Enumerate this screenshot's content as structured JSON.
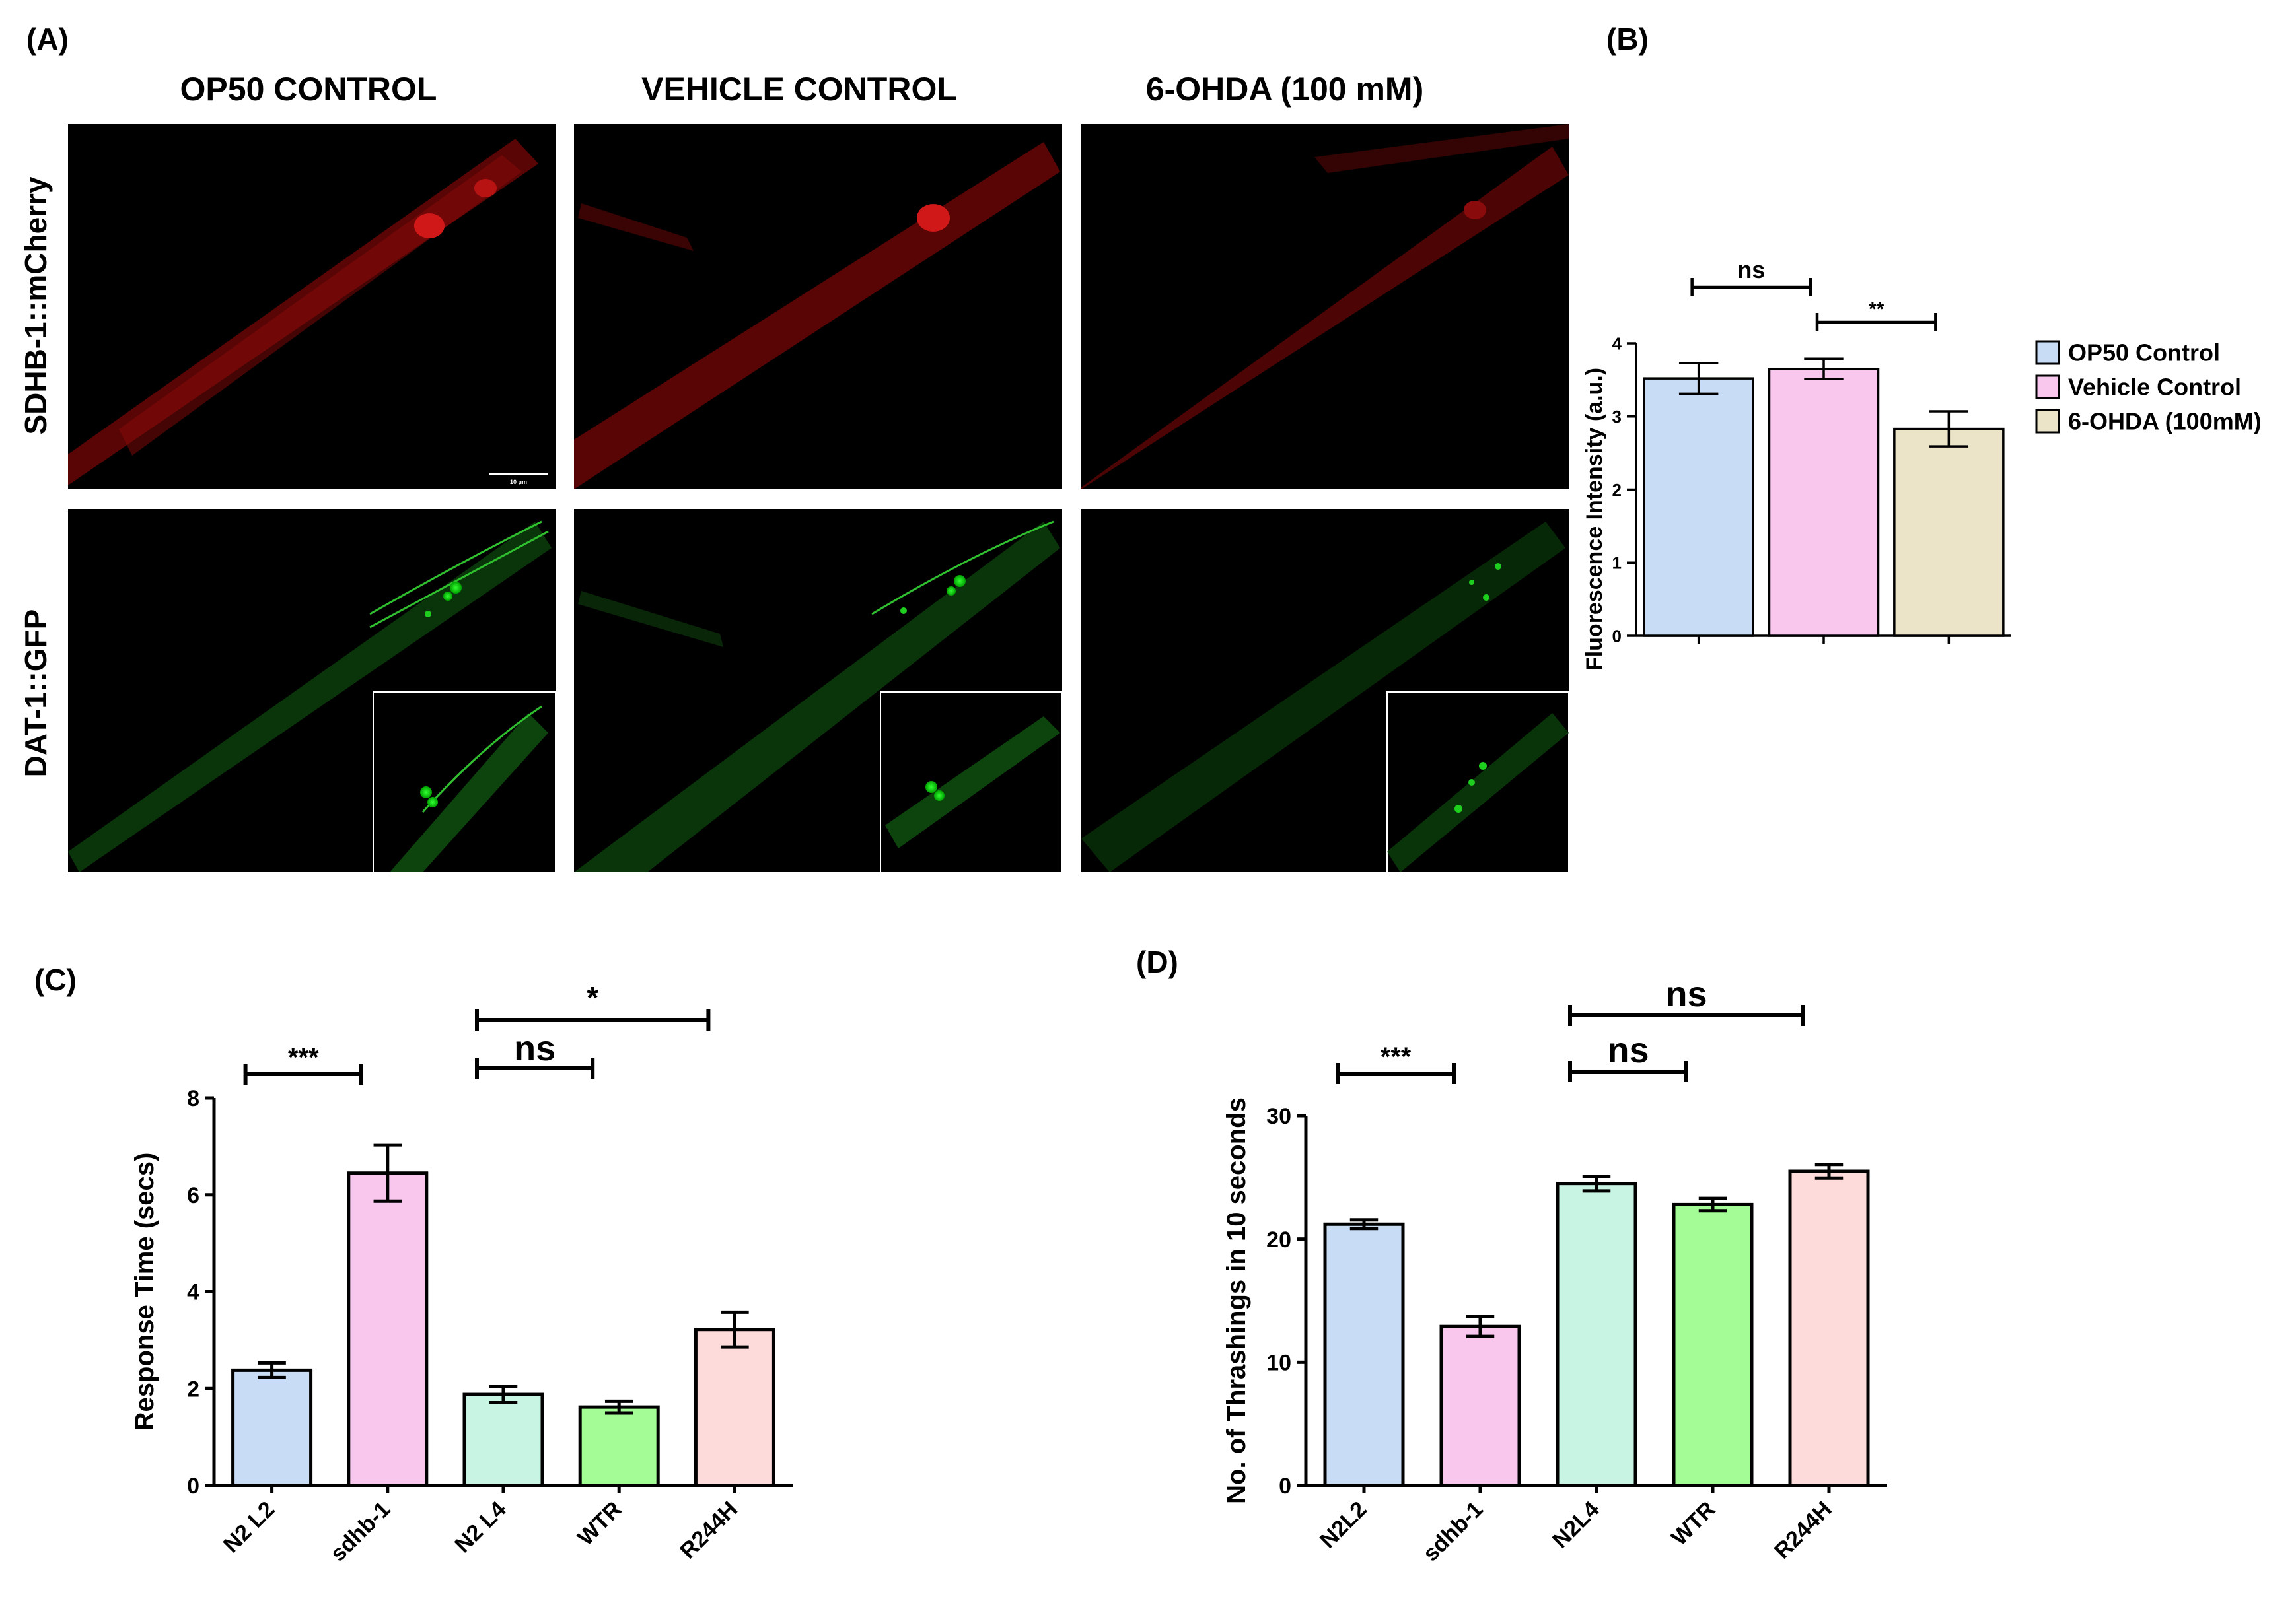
{
  "panel_a": {
    "label": "(A)",
    "column_headers": [
      "OP50 CONTROL",
      "VEHICLE CONTROL",
      "6-OHDA (100 mM)"
    ],
    "row_labels": [
      "SDHB-1::mCherry",
      "DAT-1::GFP"
    ],
    "scale_bar_label": "10 μm"
  },
  "chart_data": [
    {
      "panel": "(B)",
      "type": "bar",
      "categories": [
        "OP50 Control",
        "Vehicle Control",
        "6-OHDA (100mM)"
      ],
      "values": [
        3.52,
        3.65,
        2.83
      ],
      "errors": [
        0.21,
        0.14,
        0.24
      ],
      "colors": [
        "#c9dcf5",
        "#f9c7ee",
        "#ebe4c8"
      ],
      "title": "",
      "xlabel": "",
      "ylabel": "Fluorescence Intensity (a.u.)",
      "ylim": [
        0,
        4
      ],
      "yticks": [
        0,
        1,
        2,
        3,
        4
      ],
      "legend": {
        "placement": "right",
        "entries": [
          "OP50 Control",
          "Vehicle Control",
          "6-OHDA (100mM)"
        ]
      },
      "significance": [
        {
          "from": 0,
          "to": 1,
          "label": "ns"
        },
        {
          "from": 1,
          "to": 2,
          "label": "**"
        }
      ],
      "grid": false
    },
    {
      "panel": "(C)",
      "type": "bar",
      "categories": [
        "N2 L2",
        "sdhb-1",
        "N2 L4",
        "WTR",
        "R244H"
      ],
      "values": [
        2.38,
        6.45,
        1.88,
        1.62,
        3.22
      ],
      "errors": [
        0.15,
        0.58,
        0.17,
        0.12,
        0.36
      ],
      "colors": [
        "#c9dcf5",
        "#f9c7ee",
        "#c8f5e3",
        "#a3fc96",
        "#fddbdb"
      ],
      "title": "",
      "xlabel": "",
      "ylabel": "Response Time (secs)",
      "ylim": [
        0,
        8
      ],
      "yticks": [
        0,
        2,
        4,
        6,
        8
      ],
      "significance": [
        {
          "from": 0,
          "to": 1,
          "label": "***"
        },
        {
          "from": 2,
          "to": 3,
          "label": "ns"
        },
        {
          "from": 2,
          "to": 4,
          "label": "*"
        }
      ],
      "grid": false
    },
    {
      "panel": "(D)",
      "type": "bar",
      "categories": [
        "N2L2",
        "sdhb-1",
        "N2L4",
        "WTR",
        "R244H"
      ],
      "values": [
        21.2,
        12.9,
        24.5,
        22.8,
        25.5
      ],
      "errors": [
        0.35,
        0.8,
        0.6,
        0.5,
        0.55
      ],
      "colors": [
        "#c9dcf5",
        "#f9c7ee",
        "#c8f5e3",
        "#a3fc96",
        "#fddbdb"
      ],
      "title": "",
      "xlabel": "",
      "ylabel": "No. of Thrashings in 10 seconds",
      "ylim": [
        0,
        30
      ],
      "yticks": [
        0,
        10,
        20,
        30
      ],
      "significance": [
        {
          "from": 0,
          "to": 1,
          "label": "***"
        },
        {
          "from": 2,
          "to": 3,
          "label": "ns"
        },
        {
          "from": 2,
          "to": 4,
          "label": "ns"
        }
      ],
      "grid": false
    }
  ]
}
